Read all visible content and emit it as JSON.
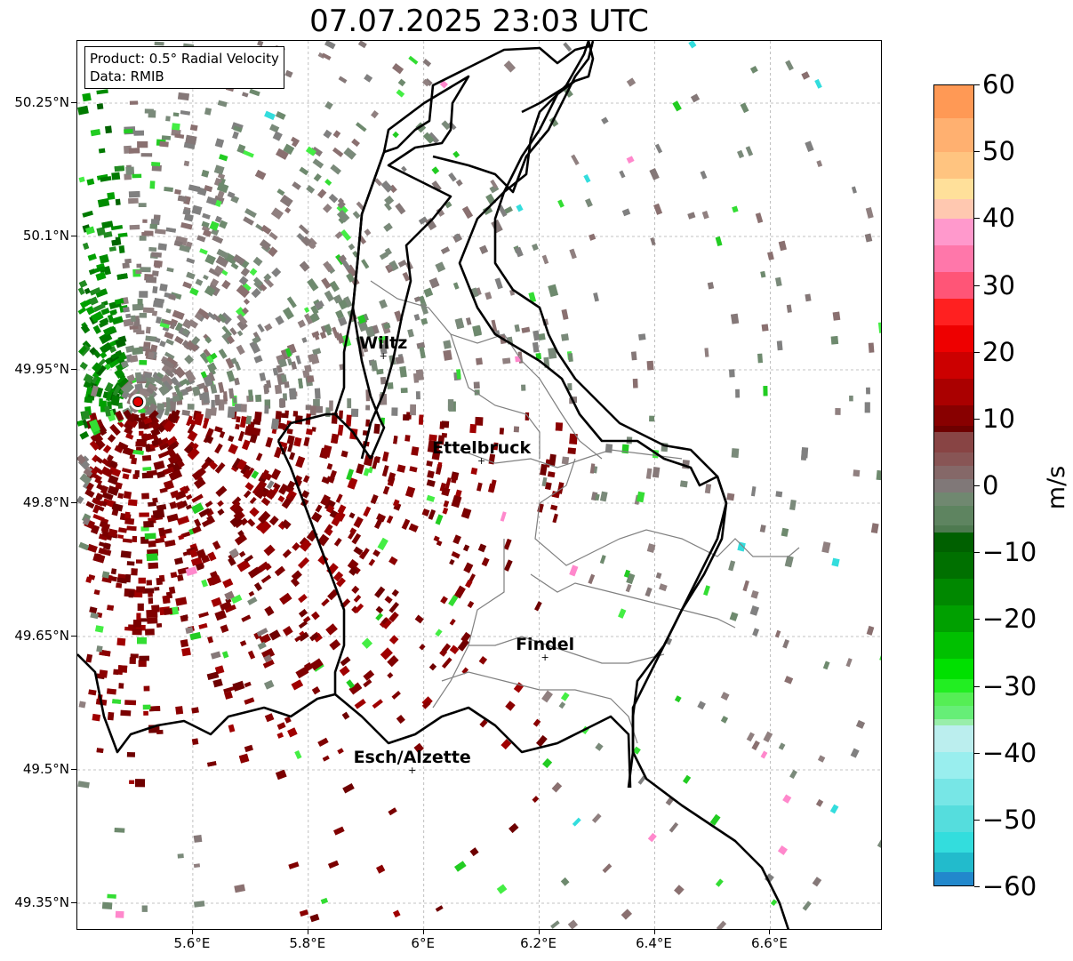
{
  "title": "07.07.2025 23:03 UTC",
  "info": {
    "product": "Product: 0.5° Radial Velocity",
    "data": "Data: RMIB"
  },
  "axes": {
    "lat_ticks": [
      "50.25°N",
      "50.1°N",
      "49.95°N",
      "49.8°N",
      "49.65°N",
      "49.5°N",
      "49.35°N"
    ],
    "lon_ticks": [
      "5.6°E",
      "5.8°E",
      "6°E",
      "6.2°E",
      "6.4°E",
      "6.6°E"
    ]
  },
  "cities": [
    {
      "name": "Wiltz",
      "lon": 5.93,
      "lat": 49.966
    },
    {
      "name": "Ettelbruck",
      "lon": 6.1,
      "lat": 49.848
    },
    {
      "name": "Findel",
      "lon": 6.21,
      "lat": 49.627
    },
    {
      "name": "Esch/Alzette",
      "lon": 5.98,
      "lat": 49.5
    }
  ],
  "radar_site": {
    "lon": 5.505,
    "lat": 49.914
  },
  "colorbar": {
    "unit": "m/s",
    "min": -60,
    "max": 60,
    "tick_labels": [
      "60",
      "50",
      "40",
      "30",
      "20",
      "10",
      "0",
      "−10",
      "−20",
      "−30",
      "−40",
      "−50",
      "−60"
    ]
  },
  "colors": {
    "border_country": "#000000",
    "border_canton": "#808080",
    "city_marker": "#000000",
    "radar_marker": "#e00000"
  }
}
